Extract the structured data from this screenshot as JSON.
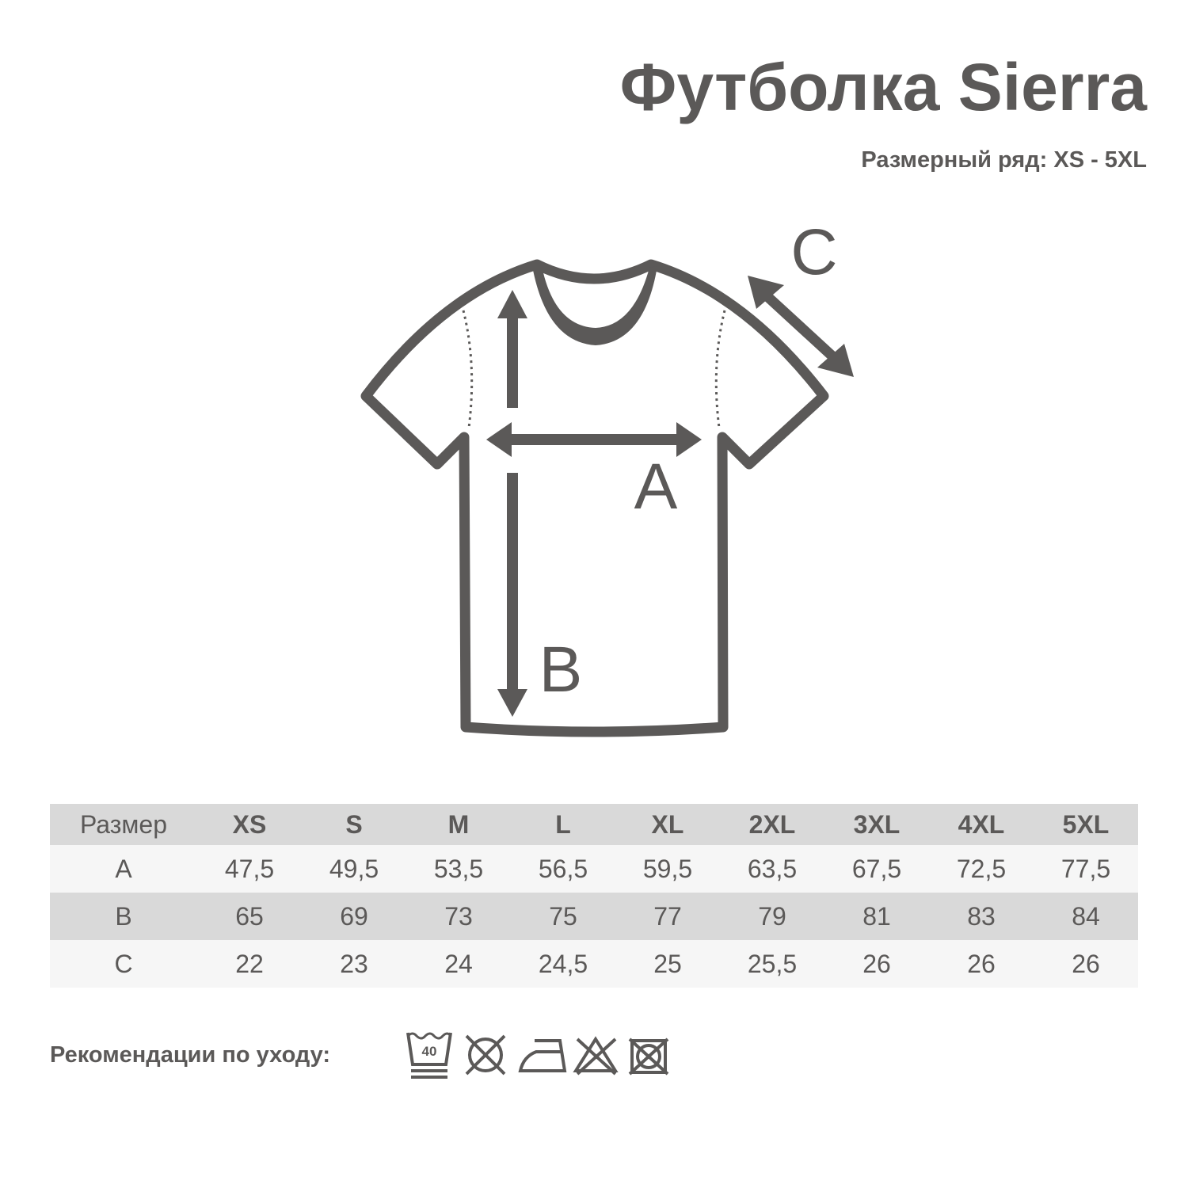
{
  "title": "Футболка Sierra",
  "subtitle": "Размерный ряд: XS - 5XL",
  "diagram": {
    "label_a": "A",
    "label_b": "B",
    "label_c": "C",
    "color": "#5b5958"
  },
  "table": {
    "header": [
      "Размер",
      "XS",
      "S",
      "M",
      "L",
      "XL",
      "2XL",
      "3XL",
      "4XL",
      "5XL"
    ],
    "rows": [
      [
        "A",
        "47,5",
        "49,5",
        "53,5",
        "56,5",
        "59,5",
        "63,5",
        "67,5",
        "72,5",
        "77,5"
      ],
      [
        "B",
        "65",
        "69",
        "73",
        "75",
        "77",
        "79",
        "81",
        "83",
        "84"
      ],
      [
        "C",
        "22",
        "23",
        "24",
        "24,5",
        "25",
        "25,5",
        "26",
        "26",
        "26"
      ]
    ]
  },
  "care": {
    "label": "Рекомендации по уходу:",
    "wash_temp": "40",
    "icons": [
      "wash-40-gentle-icon",
      "no-tumble-dry-icon",
      "iron-low-icon",
      "no-bleach-icon",
      "no-dry-clean-icon"
    ]
  }
}
